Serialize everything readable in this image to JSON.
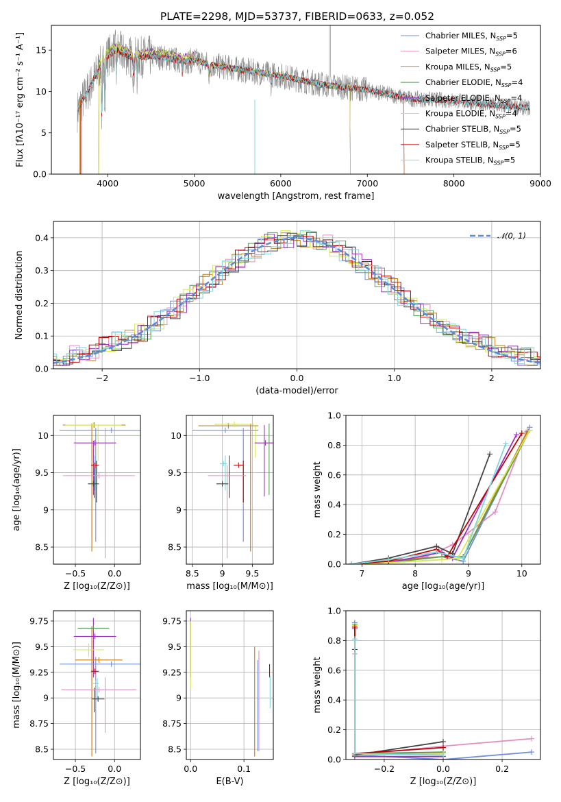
{
  "figure": {
    "title": "PLATE=2298, MJD=53737, FIBERID=0633, z=0.052"
  },
  "colors": {
    "Chabrier MILES": "#6f8fd8",
    "Salpeter MILES": "#e38fbf",
    "Kroupa MILES": "#c97a10",
    "Chabrier ELODIE": "#5a9a5a",
    "Salpeter ELODIE": "#9b2fc3",
    "Kroupa ELODIE": "#d7ea4a",
    "Chabrier STELIB": "#444444",
    "Salpeter STELIB": "#c00000",
    "Kroupa STELIB": "#7fd6dc",
    "data": "#888888"
  },
  "chart_data": [
    {
      "id": "spectrum",
      "type": "line",
      "xlabel": "wavelength [Angstrom, rest frame]",
      "ylabel": "Flux [fλ10⁻¹⁷ erg cm⁻² s⁻¹ A⁻¹]",
      "xlim": [
        3350,
        9000
      ],
      "ylim": [
        0,
        18
      ],
      "xticks": [
        4000,
        5000,
        6000,
        7000,
        8000,
        9000
      ],
      "yticks": [
        0,
        5,
        10,
        15
      ],
      "grid": false,
      "legend_position": "top-right",
      "legend": [
        {
          "name": "Chabrier MILES",
          "sub": "SSP",
          "n": "5"
        },
        {
          "name": "Salpeter MILES",
          "sub": "SSP",
          "n": "6"
        },
        {
          "name": "Kroupa MILES",
          "sub": "SSP",
          "n": "5"
        },
        {
          "name": "Chabrier ELODIE",
          "sub": "SSP",
          "n": "4"
        },
        {
          "name": "Salpeter ELODIE",
          "sub": "SSP",
          "n": "4"
        },
        {
          "name": "Kroupa ELODIE",
          "sub": "SSP",
          "n": "4"
        },
        {
          "name": "Chabrier STELIB",
          "sub": "SSP",
          "n": "5"
        },
        {
          "name": "Salpeter STELIB",
          "sub": "SSP",
          "n": "5"
        },
        {
          "name": "Kroupa STELIB",
          "sub": "SSP",
          "n": "5"
        }
      ],
      "continuum": [
        [
          3650,
          9.5
        ],
        [
          3700,
          10.5
        ],
        [
          3800,
          12
        ],
        [
          3900,
          13.5
        ],
        [
          4000,
          14.3
        ],
        [
          4100,
          15
        ],
        [
          4200,
          14.5
        ],
        [
          4300,
          14
        ],
        [
          4500,
          14.3
        ],
        [
          4700,
          14
        ],
        [
          4900,
          13.6
        ],
        [
          5000,
          13.8
        ],
        [
          5200,
          13.2
        ],
        [
          5500,
          12.7
        ],
        [
          6000,
          11.9
        ],
        [
          6500,
          10.8
        ],
        [
          7000,
          10.2
        ],
        [
          7500,
          9.1
        ],
        [
          8000,
          8.9
        ],
        [
          8500,
          8.3
        ],
        [
          8880,
          8.0
        ]
      ]
    },
    {
      "id": "residuals",
      "type": "line",
      "xlabel": "(data-model)/error",
      "ylabel": "Normed distribution",
      "xlim": [
        -2.5,
        2.5
      ],
      "ylim": [
        0,
        0.45
      ],
      "xticks": [
        -2,
        -1,
        0,
        1,
        2
      ],
      "yticks": [
        0.0,
        0.1,
        0.2,
        0.3,
        0.4
      ],
      "grid": true,
      "legend_position": "top-right",
      "legend": [
        {
          "name": "𝒩(0, 1)",
          "style": "dashed"
        }
      ],
      "gaussian": {
        "mean": 0,
        "sigma": 1
      }
    },
    {
      "id": "age-vs-Z",
      "type": "scatter",
      "xlabel": "Z [log₁₀(Z/Z⊙)]",
      "ylabel": "age  [log₁₀(age/yr)]",
      "xlim": [
        -0.78,
        0.33
      ],
      "ylim": [
        8.27,
        10.27
      ],
      "xticks": [
        -0.5,
        0.0
      ],
      "yticks": [
        8.5,
        9.0,
        9.5,
        10.0
      ],
      "grid": true,
      "points": [
        {
          "series": "Chabrier MILES",
          "x": -0.04,
          "xerr": 0.66,
          "y": 10.07,
          "yerr": 0.0
        },
        {
          "series": "Kroupa MILES",
          "x": -0.26,
          "xerr": 0.4,
          "y": 10.14,
          "yerr": 0.0
        },
        {
          "series": "Kroupa ELODIE",
          "x": -0.27,
          "xerr": 0.36,
          "y": 10.14,
          "yerr": 0.0
        },
        {
          "series": "Salpeter MILES",
          "x": -0.2,
          "xerr": 0.46,
          "y": 9.46,
          "yerr": 0.0
        },
        {
          "series": "Salpeter ELODIE",
          "x": -0.25,
          "xerr": 0.27,
          "y": 9.9,
          "yerr": 0.0
        },
        {
          "series": "Chabrier STELIB",
          "x": -0.27,
          "xerr": 0.07,
          "y": 9.35,
          "yerr": 0.0
        },
        {
          "series": "Salpeter STELIB",
          "x": -0.25,
          "xerr": 0.05,
          "y": 9.6,
          "yerr": 0.0
        },
        {
          "series": "Kroupa STELIB",
          "x": -0.26,
          "xerr": 0.0,
          "y": 9.6,
          "yerr": 0.0
        }
      ],
      "vlines": [
        {
          "series": "Kroupa MILES",
          "x": -0.29,
          "y1": 8.44,
          "y2": 10.16
        },
        {
          "series": "Salpeter MILES",
          "x": -0.12,
          "y1": 8.35,
          "y2": 10.1
        },
        {
          "series": "Chabrier MILES",
          "x": -0.24,
          "y1": 8.57,
          "y2": 10.1
        },
        {
          "series": "Salpeter ELODIE",
          "x": -0.27,
          "y1": 9.2,
          "y2": 9.93
        },
        {
          "series": "Chabrier STELIB",
          "x": -0.26,
          "y1": 9.16,
          "y2": 9.62
        },
        {
          "series": "Kroupa ELODIE",
          "x": -0.21,
          "y1": 9.66,
          "y2": 10.14
        },
        {
          "series": "Kroupa STELIB",
          "x": -0.25,
          "y1": 9.26,
          "y2": 9.73
        },
        {
          "series": "Chabrier STELIB",
          "x": -0.23,
          "y1": 9.1,
          "y2": 9.66
        }
      ]
    },
    {
      "id": "age-vs-mass",
      "type": "scatter",
      "xlabel": "mass [log₁₀(M/M⊙)]",
      "ylabel": "",
      "xlim": [
        8.4,
        9.85
      ],
      "ylim": [
        8.27,
        10.27
      ],
      "xticks": [
        8.5,
        9.0,
        9.5
      ],
      "yticks": [
        8.5,
        9.0,
        9.5,
        10.0
      ],
      "grid": true,
      "points": [
        {
          "series": "Chabrier MILES",
          "x": 9.05,
          "xerr": 0.55,
          "y": 10.07,
          "yerr": 0.0
        },
        {
          "series": "Kroupa MILES",
          "x": 9.1,
          "xerr": 0.5,
          "y": 10.13,
          "yerr": 0.0
        },
        {
          "series": "Kroupa ELODIE",
          "x": 9.2,
          "xerr": 0.33,
          "y": 10.15,
          "yerr": 0.0
        },
        {
          "series": "Salpeter MILES",
          "x": 9.08,
          "xerr": 0.32,
          "y": 9.46,
          "yerr": 0.0
        },
        {
          "series": "Salpeter ELODIE",
          "x": 9.72,
          "xerr": 0.18,
          "y": 9.9,
          "yerr": 0.0
        },
        {
          "series": "Chabrier STELIB",
          "x": 9.0,
          "xerr": 0.1,
          "y": 9.35,
          "yerr": 0.0
        },
        {
          "series": "Salpeter STELIB",
          "x": 9.27,
          "xerr": 0.08,
          "y": 9.6,
          "yerr": 0.0
        },
        {
          "series": "Kroupa STELIB",
          "x": 9.02,
          "xerr": 0.06,
          "y": 9.62,
          "yerr": 0.0
        }
      ],
      "vlines": [
        {
          "series": "Kroupa MILES",
          "x": 9.47,
          "y1": 8.44,
          "y2": 10.16
        },
        {
          "series": "Salpeter MILES",
          "x": 9.08,
          "y1": 8.35,
          "y2": 9.6
        },
        {
          "series": "Chabrier MILES",
          "x": 9.35,
          "y1": 8.57,
          "y2": 10.1
        },
        {
          "series": "Salpeter ELODIE",
          "x": 9.7,
          "y1": 9.18,
          "y2": 10.14
        },
        {
          "series": "Chabrier ELODIE",
          "x": 9.78,
          "y1": 9.2,
          "y2": 10.16
        },
        {
          "series": "Chabrier STELIB",
          "x": 9.12,
          "y1": 9.16,
          "y2": 9.73
        },
        {
          "series": "Kroupa ELODIE",
          "x": 9.55,
          "y1": 9.7,
          "y2": 10.14
        },
        {
          "series": "Kroupa STELIB",
          "x": 9.05,
          "y1": 9.26,
          "y2": 9.73
        },
        {
          "series": "Salpeter STELIB",
          "x": 9.35,
          "y1": 9.1,
          "y2": 9.66
        }
      ]
    },
    {
      "id": "mass-weight-vs-age",
      "type": "line",
      "xlabel": "age  [log₁₀(age/yr)]",
      "ylabel": "mass weight",
      "xlim": [
        6.7,
        10.35
      ],
      "ylim": [
        0,
        1
      ],
      "xticks": [
        7,
        8,
        9,
        10
      ],
      "yticks": [
        0.0,
        0.2,
        0.4,
        0.6,
        0.8,
        1.0
      ],
      "grid": true,
      "series": [
        {
          "name": "Chabrier MILES",
          "x": [
            6.8,
            7.5,
            8.5,
            8.9,
            10.15
          ],
          "y": [
            0.0,
            0.02,
            0.05,
            0.02,
            0.92
          ]
        },
        {
          "name": "Salpeter MILES",
          "x": [
            6.8,
            7.5,
            8.2,
            8.7,
            9.5,
            10.1
          ],
          "y": [
            0.0,
            0.02,
            0.05,
            0.13,
            0.35,
            0.9
          ]
        },
        {
          "name": "Kroupa MILES",
          "x": [
            6.8,
            7.5,
            8.5,
            8.9,
            10.1
          ],
          "y": [
            0.0,
            0.02,
            0.05,
            0.05,
            0.89
          ]
        },
        {
          "name": "Chabrier ELODIE",
          "x": [
            6.8,
            7.5,
            8.5,
            8.9,
            10.15
          ],
          "y": [
            0.0,
            0.01,
            0.05,
            0.05,
            0.9
          ]
        },
        {
          "name": "Salpeter ELODIE",
          "x": [
            6.8,
            7.5,
            8.5,
            8.7,
            9.9
          ],
          "y": [
            0.0,
            0.01,
            0.08,
            0.04,
            0.87
          ]
        },
        {
          "name": "Kroupa ELODIE",
          "x": [
            6.8,
            7.5,
            8.5,
            8.8,
            10.15
          ],
          "y": [
            0.0,
            0.01,
            0.03,
            0.04,
            0.9
          ]
        },
        {
          "name": "Chabrier STELIB",
          "x": [
            6.8,
            7.5,
            8.4,
            8.7,
            9.4
          ],
          "y": [
            0.0,
            0.04,
            0.12,
            0.07,
            0.74
          ]
        },
        {
          "name": "Salpeter STELIB",
          "x": [
            6.8,
            7.5,
            8.4,
            8.6,
            10.0
          ],
          "y": [
            0.0,
            0.02,
            0.1,
            0.05,
            0.88
          ]
        },
        {
          "name": "Kroupa STELIB",
          "x": [
            6.8,
            7.5,
            8.4,
            8.9,
            9.7
          ],
          "y": [
            0.0,
            0.03,
            0.08,
            0.04,
            0.81
          ]
        }
      ]
    },
    {
      "id": "mass-vs-Z",
      "type": "scatter",
      "xlabel": "Z [log₁₀(Z/Z⊙)]",
      "ylabel": "mass [log₁₀(M/M⊙)]",
      "xlim": [
        -0.78,
        0.33
      ],
      "ylim": [
        8.4,
        9.85
      ],
      "xticks": [
        -0.5,
        0.0
      ],
      "yticks": [
        8.5,
        8.75,
        9.0,
        9.25,
        9.5,
        9.75
      ],
      "grid": true,
      "points": [
        {
          "series": "Chabrier MILES",
          "x": -0.04,
          "xerr": 0.66,
          "y": 9.33,
          "yerr": 0.0
        },
        {
          "series": "Kroupa MILES",
          "x": -0.2,
          "xerr": 0.3,
          "y": 9.37,
          "yerr": 0.0
        },
        {
          "series": "Kroupa ELODIE",
          "x": -0.33,
          "xerr": 0.2,
          "y": 9.47,
          "yerr": 0.0
        },
        {
          "series": "Salpeter MILES",
          "x": -0.2,
          "xerr": 0.48,
          "y": 9.08,
          "yerr": 0.0
        },
        {
          "series": "Salpeter ELODIE",
          "x": -0.25,
          "xerr": 0.27,
          "y": 9.6,
          "yerr": 0.0
        },
        {
          "series": "Chabrier ELODIE",
          "x": -0.27,
          "xerr": 0.2,
          "y": 9.68,
          "yerr": 0.0
        },
        {
          "series": "Chabrier STELIB",
          "x": -0.21,
          "xerr": 0.08,
          "y": 8.99,
          "yerr": 0.0
        },
        {
          "series": "Salpeter STELIB",
          "x": -0.25,
          "xerr": 0.05,
          "y": 9.26,
          "yerr": 0.0
        },
        {
          "series": "Kroupa STELIB",
          "x": -0.24,
          "xerr": 0.04,
          "y": 9.14,
          "yerr": 0.0
        }
      ],
      "vlines": [
        {
          "series": "Kroupa MILES",
          "x": -0.29,
          "y1": 8.43,
          "y2": 9.7
        },
        {
          "series": "Salpeter MILES",
          "x": -0.12,
          "y1": 8.66,
          "y2": 9.2
        },
        {
          "series": "Chabrier MILES",
          "x": -0.24,
          "y1": 8.46,
          "y2": 9.4
        },
        {
          "series": "Salpeter ELODIE",
          "x": -0.27,
          "y1": 9.2,
          "y2": 9.78
        },
        {
          "series": "Chabrier STELIB",
          "x": -0.26,
          "y1": 8.86,
          "y2": 9.1
        },
        {
          "series": "Kroupa ELODIE",
          "x": -0.33,
          "y1": 9.4,
          "y2": 9.53
        },
        {
          "series": "Kroupa STELIB",
          "x": -0.22,
          "y1": 8.98,
          "y2": 9.19
        }
      ]
    },
    {
      "id": "mass-vs-EBV",
      "type": "scatter",
      "xlabel": "E(B-V)",
      "ylabel": "",
      "xlim": [
        -0.008,
        0.155
      ],
      "ylim": [
        8.4,
        9.85
      ],
      "xticks": [
        0.0,
        0.1
      ],
      "yticks": [
        8.5,
        8.75,
        9.0,
        9.25,
        9.5,
        9.75
      ],
      "grid": true,
      "vlines": [
        {
          "series": "Salpeter ELODIE",
          "x": 0.0,
          "y1": 9.2,
          "y2": 9.78
        },
        {
          "series": "Kroupa ELODIE",
          "x": 0.0,
          "y1": 9.1,
          "y2": 9.75
        },
        {
          "series": "Kroupa MILES",
          "x": 0.12,
          "y1": 8.43,
          "y2": 9.5
        },
        {
          "series": "Salpeter MILES",
          "x": 0.128,
          "y1": 8.48,
          "y2": 9.46
        },
        {
          "series": "Chabrier MILES",
          "x": 0.126,
          "y1": 8.48,
          "y2": 9.37
        },
        {
          "series": "Salpeter STELIB",
          "x": 0.148,
          "y1": 9.2,
          "y2": 9.33
        },
        {
          "series": "Kroupa STELIB",
          "x": 0.149,
          "y1": 8.9,
          "y2": 9.22
        }
      ]
    },
    {
      "id": "mass-weight-vs-Z",
      "type": "line",
      "xlabel": "Z [log₁₀(Z/Z⊙)]",
      "ylabel": "mass weight",
      "xlim": [
        -0.33,
        0.33
      ],
      "ylim": [
        0,
        1
      ],
      "xticks": [
        -0.2,
        0.0,
        0.2
      ],
      "yticks": [
        0.0,
        0.2,
        0.4,
        0.6,
        0.8,
        1.0
      ],
      "grid": true,
      "series": [
        {
          "name": "Chabrier MILES",
          "x": [
            -0.3,
            -0.3,
            0.0,
            0.3
          ],
          "y": [
            0.92,
            0.03,
            0.0,
            0.05
          ]
        },
        {
          "name": "Salpeter MILES",
          "x": [
            -0.3,
            -0.3,
            0.0,
            0.3
          ],
          "y": [
            0.71,
            0.03,
            0.09,
            0.14
          ]
        },
        {
          "name": "Kroupa MILES",
          "x": [
            -0.3,
            -0.3,
            0.0
          ],
          "y": [
            0.9,
            0.03,
            0.05
          ]
        },
        {
          "name": "Chabrier ELODIE",
          "x": [
            -0.3,
            -0.3,
            0.0
          ],
          "y": [
            0.91,
            0.04,
            0.05
          ]
        },
        {
          "name": "Salpeter ELODIE",
          "x": [
            -0.3,
            -0.3,
            0.0
          ],
          "y": [
            0.88,
            0.02,
            0.02
          ]
        },
        {
          "name": "Kroupa ELODIE",
          "x": [
            -0.3,
            -0.3,
            0.0
          ],
          "y": [
            0.9,
            0.03,
            0.04
          ]
        },
        {
          "name": "Chabrier STELIB",
          "x": [
            -0.3,
            -0.3,
            0.0
          ],
          "y": [
            0.74,
            0.03,
            0.12
          ]
        },
        {
          "name": "Salpeter STELIB",
          "x": [
            -0.3,
            -0.3,
            0.0
          ],
          "y": [
            0.89,
            0.04,
            0.08
          ]
        },
        {
          "name": "Kroupa STELIB",
          "x": [
            -0.3,
            -0.3,
            0.0
          ],
          "y": [
            0.81,
            0.04,
            0.03
          ]
        }
      ]
    }
  ]
}
